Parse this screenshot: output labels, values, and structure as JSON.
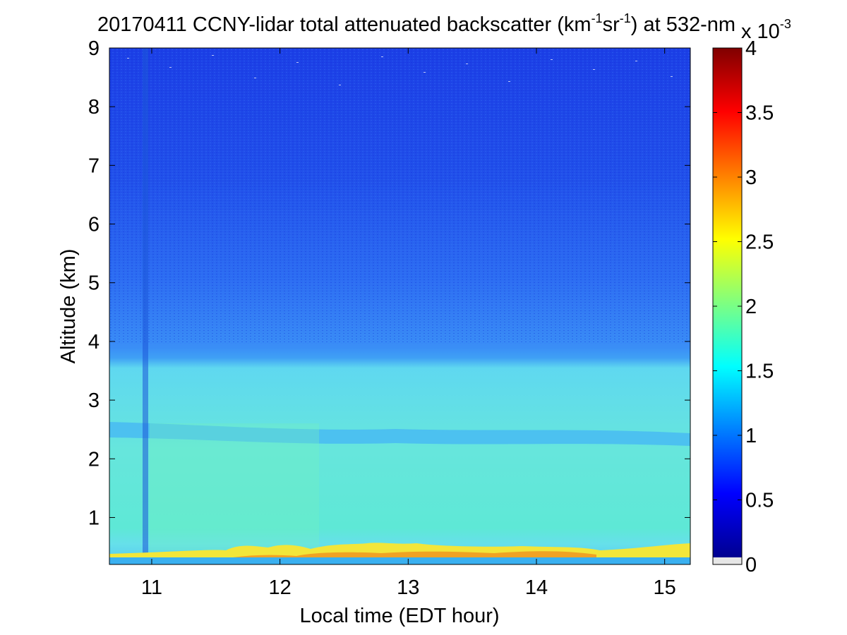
{
  "chart_data": {
    "type": "heatmap",
    "title": {
      "prefix": "20170411 CCNY-lidar total attenuated backscatter (km",
      "sup1": "-1",
      "mid": "sr",
      "sup2": "-1",
      "suffix": ") at 532-nm"
    },
    "xlabel": "Local time (EDT hour)",
    "ylabel": "Altitude (km)",
    "xlim": [
      10.67,
      15.2
    ],
    "ylim": [
      0.2,
      9
    ],
    "xticks": [
      "11",
      "12",
      "13",
      "14",
      "15"
    ],
    "xtick_values": [
      11,
      12,
      13,
      14,
      15
    ],
    "yticks": [
      "1",
      "2",
      "3",
      "4",
      "5",
      "6",
      "7",
      "8",
      "9"
    ],
    "ytick_values": [
      1,
      2,
      3,
      4,
      5,
      6,
      7,
      8,
      9
    ],
    "colorbar": {
      "range": [
        0,
        4
      ],
      "ticks": [
        "0",
        "0.5",
        "1",
        "1.5",
        "2",
        "2.5",
        "3",
        "3.5",
        "4"
      ],
      "tick_values": [
        0,
        0.5,
        1,
        1.5,
        2,
        2.5,
        3,
        3.5,
        4
      ],
      "exponent_base": "x 10",
      "exponent_power": "-3",
      "colormap": "jet"
    },
    "field_features": {
      "surface_layer": {
        "altitude_km": [
          0.2,
          0.35
        ],
        "value_e3": 1.2
      },
      "aerosol_peak_layer": {
        "altitude_km": [
          0.3,
          0.5
        ],
        "value_e3": 2.6,
        "max_value_e3": 3.0,
        "max_time": [
          13.0,
          14.4
        ]
      },
      "boundary_layer": {
        "altitude_km": [
          0.5,
          2.5
        ],
        "value_e3": 1.6
      },
      "boundary_layer_top_km": 2.6,
      "free_troposphere": [
        {
          "altitude_km": 3,
          "value_e3": 1.1
        },
        {
          "altitude_km": 5,
          "value_e3": 0.9
        },
        {
          "altitude_km": 7,
          "value_e3": 0.75
        },
        {
          "altitude_km": 9,
          "value_e3": 0.65
        }
      ],
      "dark_band_time": 10.97,
      "brighter_band_time": [
        10.7,
        12.3
      ]
    }
  }
}
